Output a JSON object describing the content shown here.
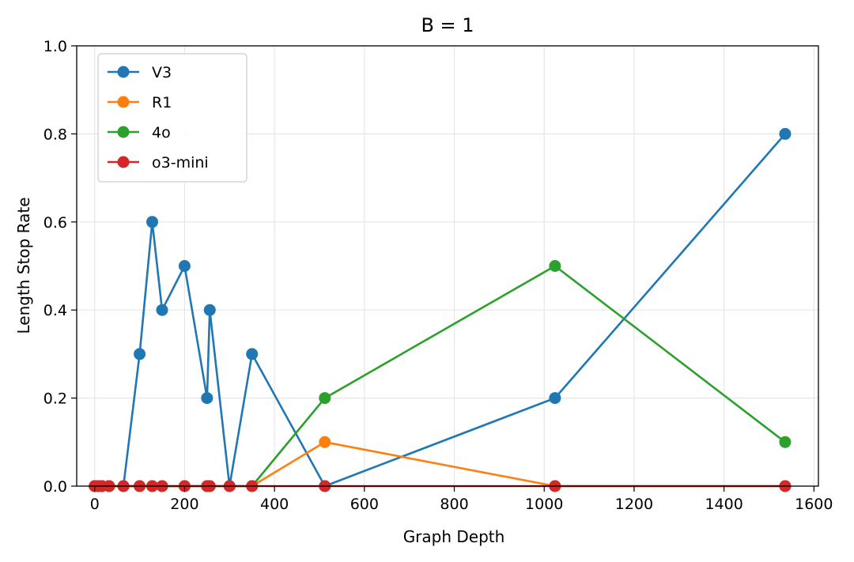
{
  "chart_data": {
    "type": "line",
    "title": "B = 1",
    "xlabel": "Graph Depth",
    "ylabel": "Length Stop Rate",
    "xlim": [
      -40,
      1610
    ],
    "ylim": [
      0,
      1.0
    ],
    "xticks": [
      0,
      200,
      400,
      600,
      800,
      1000,
      1200,
      1400,
      1600
    ],
    "xtick_labels": [
      "0",
      "200",
      "400",
      "600",
      "800",
      "1000",
      "1200",
      "1400",
      "1600"
    ],
    "yticks": [
      0,
      0.2,
      0.4,
      0.6,
      0.8,
      1.0
    ],
    "ytick_labels": [
      "0.0",
      "0.2",
      "0.4",
      "0.6",
      "0.8",
      "1.0"
    ],
    "grid": true,
    "legend_position": "top-left",
    "series": [
      {
        "name": "V3",
        "color": "#1f77b4",
        "x": [
          0,
          8,
          16,
          32,
          64,
          100,
          128,
          150,
          200,
          250,
          256,
          300,
          350,
          512,
          1024,
          1536
        ],
        "y": [
          0,
          0,
          0,
          0,
          0,
          0.3,
          0.6,
          0.4,
          0.5,
          0.2,
          0.4,
          0,
          0.3,
          0,
          0.2,
          0.8
        ]
      },
      {
        "name": "R1",
        "color": "#ff7f0e",
        "x": [
          0,
          8,
          16,
          32,
          64,
          100,
          128,
          150,
          200,
          250,
          256,
          300,
          350,
          512,
          1024,
          1536
        ],
        "y": [
          0,
          0,
          0,
          0,
          0,
          0,
          0,
          0,
          0,
          0,
          0,
          0,
          0,
          0.1,
          0,
          0
        ]
      },
      {
        "name": "4o",
        "color": "#2ca02c",
        "x": [
          0,
          8,
          16,
          32,
          64,
          100,
          128,
          150,
          200,
          250,
          256,
          300,
          350,
          512,
          1024,
          1536
        ],
        "y": [
          0,
          0,
          0,
          0,
          0,
          0,
          0,
          0,
          0,
          0,
          0,
          0,
          0,
          0.2,
          0.5,
          0.1
        ]
      },
      {
        "name": "o3-mini",
        "color": "#d62728",
        "x": [
          0,
          8,
          16,
          32,
          64,
          100,
          128,
          150,
          200,
          250,
          256,
          300,
          350,
          512,
          1024,
          1536
        ],
        "y": [
          0,
          0,
          0,
          0,
          0,
          0,
          0,
          0,
          0,
          0,
          0,
          0,
          0,
          0,
          0,
          0
        ]
      }
    ]
  }
}
